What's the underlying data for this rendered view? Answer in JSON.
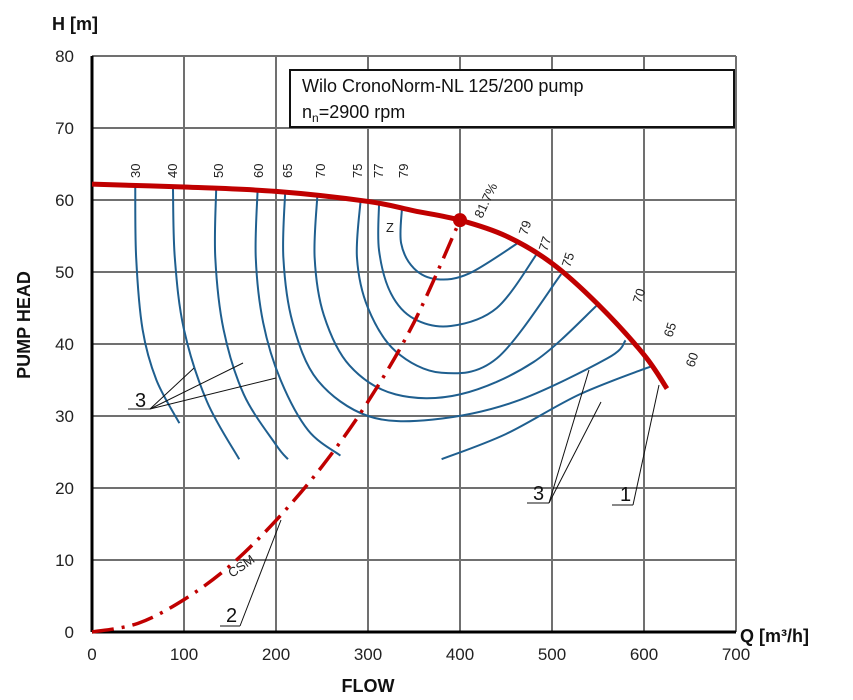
{
  "chart_data": {
    "type": "line",
    "title": "Wilo CronoNorm-NL 125/200 pump",
    "subtitle_prefix": "n",
    "subtitle_sub": "n",
    "subtitle_rest": "=2900 rpm",
    "xlabel": "FLOW",
    "ylabel": "PUMP HEAD",
    "x_unit_label": "Q [m³/h]",
    "y_unit_label": "H [m]",
    "xlim": [
      0,
      700
    ],
    "ylim": [
      0,
      80
    ],
    "x_ticks": [
      "0",
      "100",
      "200",
      "300",
      "400",
      "500",
      "600",
      "700"
    ],
    "y_ticks": [
      "0",
      "10",
      "20",
      "30",
      "40",
      "50",
      "60",
      "70",
      "80"
    ],
    "grid": true,
    "colors": {
      "pump_curve": "#c00000",
      "efficiency": "#1f5f8f",
      "grid": "#707070",
      "system": "#c00000"
    },
    "pump_curve": {
      "name": "1",
      "points": [
        [
          0,
          62.2
        ],
        [
          100,
          61.8
        ],
        [
          200,
          61.2
        ],
        [
          300,
          59.8
        ],
        [
          350,
          58.5
        ],
        [
          400,
          57.2
        ],
        [
          450,
          55
        ],
        [
          500,
          51.2
        ],
        [
          550,
          45.5
        ],
        [
          600,
          38.5
        ],
        [
          625,
          33.8
        ]
      ]
    },
    "system_curve": {
      "name": "2",
      "label": "CSM",
      "points": [
        [
          0,
          0
        ],
        [
          50,
          1.2
        ],
        [
          100,
          4.5
        ],
        [
          150,
          9.2
        ],
        [
          200,
          15.5
        ],
        [
          250,
          23
        ],
        [
          300,
          32
        ],
        [
          350,
          43
        ],
        [
          400,
          57.2
        ]
      ]
    },
    "bep": {
      "x": 400,
      "y": 57.2,
      "label": "Z",
      "efficiency_label": "81.7%"
    },
    "efficiency_curves": [
      {
        "eta": "30",
        "points": [
          [
            47,
            62
          ],
          [
            48,
            52
          ],
          [
            55,
            42
          ],
          [
            70,
            35
          ],
          [
            95,
            29
          ]
        ]
      },
      {
        "eta": "40",
        "points": [
          [
            88,
            61.8
          ],
          [
            90,
            52
          ],
          [
            100,
            42
          ],
          [
            125,
            32
          ],
          [
            160,
            24
          ]
        ]
      },
      {
        "eta": "50",
        "points": [
          [
            135,
            61.6
          ],
          [
            134,
            52
          ],
          [
            143,
            42
          ],
          [
            165,
            33
          ],
          [
            200,
            26
          ],
          [
            213,
            24
          ]
        ]
      },
      {
        "eta": "60",
        "points": [
          [
            180,
            61.4
          ],
          [
            178,
            52
          ],
          [
            186,
            43
          ],
          [
            205,
            35
          ],
          [
            235,
            28
          ],
          [
            270,
            24.5
          ]
        ]
      },
      {
        "eta": "65",
        "points": [
          [
            210,
            61.2
          ],
          [
            208,
            52
          ],
          [
            218,
            43
          ],
          [
            245,
            35
          ],
          [
            300,
            30
          ],
          [
            370,
            29.5
          ],
          [
            460,
            32
          ],
          [
            560,
            38
          ],
          [
            580,
            40.5
          ]
        ]
      },
      {
        "eta": "70",
        "points": [
          [
            245,
            60.7
          ],
          [
            242,
            52
          ],
          [
            252,
            44
          ],
          [
            280,
            37
          ],
          [
            330,
            33
          ],
          [
            400,
            33
          ],
          [
            480,
            37.5
          ],
          [
            550,
            45.5
          ]
        ]
      },
      {
        "eta": "75",
        "points": [
          [
            292,
            60
          ],
          [
            288,
            52
          ],
          [
            300,
            45
          ],
          [
            330,
            39
          ],
          [
            380,
            36
          ],
          [
            440,
            38
          ],
          [
            510,
            49.7
          ]
        ]
      },
      {
        "eta": "77",
        "points": [
          [
            312,
            59.5
          ],
          [
            312,
            53
          ],
          [
            325,
            47
          ],
          [
            350,
            43.5
          ],
          [
            390,
            42.5
          ],
          [
            440,
            45
          ],
          [
            484,
            52.6
          ]
        ]
      },
      {
        "eta": "79",
        "points": [
          [
            337,
            59
          ],
          [
            336,
            54
          ],
          [
            350,
            50.5
          ],
          [
            375,
            49
          ],
          [
            410,
            49.8
          ],
          [
            465,
            54.2
          ]
        ]
      },
      {
        "eta": "60",
        "points": [
          [
            380,
            24
          ],
          [
            450,
            27.5
          ],
          [
            530,
            33
          ],
          [
            610,
            37
          ]
        ]
      }
    ],
    "efficiency_labels_top": [
      "30",
      "40",
      "50",
      "60",
      "65",
      "70",
      "75",
      "77",
      "79"
    ],
    "efficiency_labels_right": [
      "79",
      "77",
      "75",
      "70",
      "65",
      "60"
    ],
    "callouts": [
      "3",
      "3",
      "1",
      "2"
    ]
  }
}
